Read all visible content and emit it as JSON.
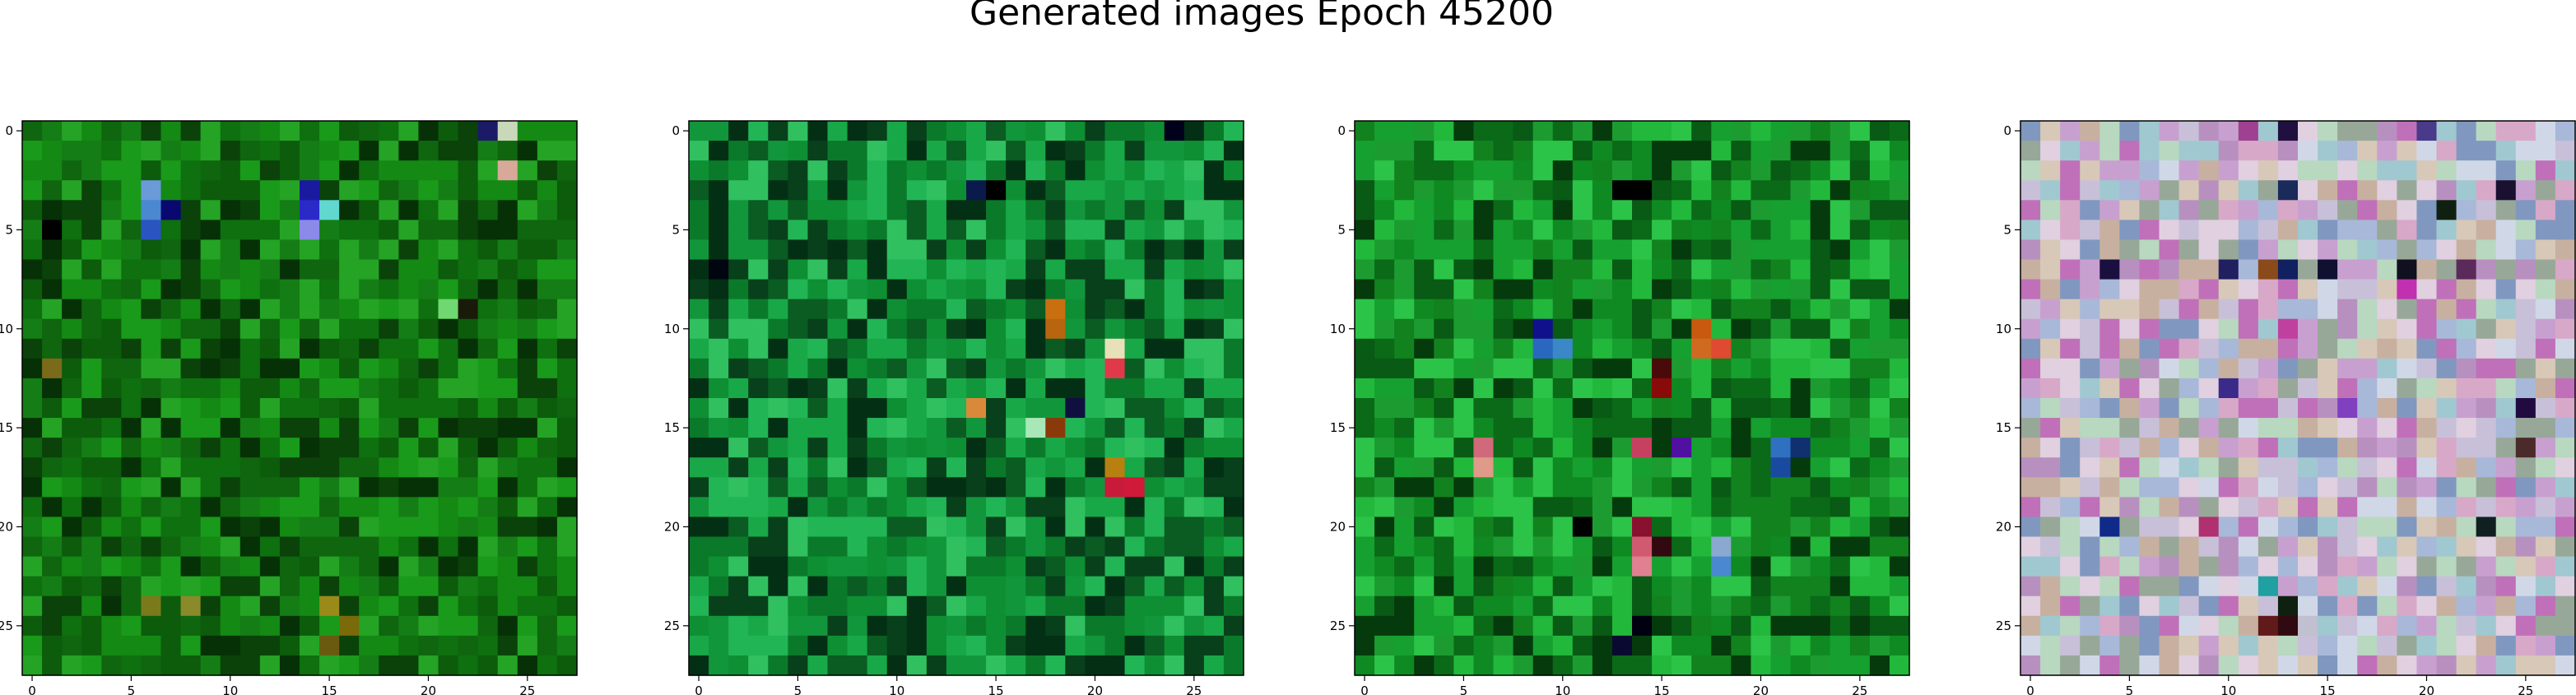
{
  "figure": {
    "title": "Generated images Epoch 45200",
    "background": "#ffffff"
  },
  "chart_data": [
    {
      "type": "heatmap",
      "panel": "image-1",
      "description_palette": "green-dominant",
      "grid_size": [
        28,
        28
      ],
      "xlim": [
        -0.5,
        27.5
      ],
      "ylim": [
        27.5,
        -0.5
      ],
      "y_axis_inverted": true,
      "xticks": [
        0,
        5,
        10,
        15,
        20,
        25
      ],
      "yticks": [
        0,
        5,
        10,
        15,
        20,
        25
      ],
      "palette": [
        "#0c5c0c",
        "#0e700e",
        "#148914",
        "#1a9a1a",
        "#0a420a",
        "#157d15",
        "#25a325",
        "#0f660f",
        "#063106"
      ],
      "highlights": [
        {
          "row": 0,
          "col": 24,
          "color": "#c8d8b8"
        },
        {
          "row": 0,
          "col": 23,
          "color": "#1a1a66"
        },
        {
          "row": 2,
          "col": 24,
          "color": "#d8a898"
        },
        {
          "row": 3,
          "col": 6,
          "color": "#6a9ad8"
        },
        {
          "row": 4,
          "col": 6,
          "color": "#4a88d0"
        },
        {
          "row": 3,
          "col": 14,
          "color": "#1a1aa0"
        },
        {
          "row": 4,
          "col": 7,
          "color": "#080870"
        },
        {
          "row": 4,
          "col": 14,
          "color": "#2a2ac8"
        },
        {
          "row": 4,
          "col": 15,
          "color": "#60d8d0"
        },
        {
          "row": 5,
          "col": 14,
          "color": "#8a8ae8"
        },
        {
          "row": 5,
          "col": 6,
          "color": "#2a55c0"
        },
        {
          "row": 5,
          "col": 1,
          "color": "#000000"
        },
        {
          "row": 9,
          "col": 21,
          "color": "#70d870"
        },
        {
          "row": 9,
          "col": 22,
          "color": "#1a1a0a"
        },
        {
          "row": 12,
          "col": 1,
          "color": "#7a6a1a"
        },
        {
          "row": 24,
          "col": 6,
          "color": "#7a7a1a"
        },
        {
          "row": 24,
          "col": 8,
          "color": "#8a8a2a"
        },
        {
          "row": 24,
          "col": 15,
          "color": "#9a8a1a"
        },
        {
          "row": 25,
          "col": 16,
          "color": "#7a6a0a"
        },
        {
          "row": 26,
          "col": 15,
          "color": "#6a5a10"
        }
      ]
    },
    {
      "type": "heatmap",
      "panel": "image-2",
      "description_palette": "green-dominant",
      "grid_size": [
        28,
        28
      ],
      "xlim": [
        -0.5,
        27.5
      ],
      "ylim": [
        27.5,
        -0.5
      ],
      "y_axis_inverted": true,
      "xticks": [
        0,
        5,
        10,
        15,
        20,
        25
      ],
      "yticks": [
        0,
        5,
        10,
        15,
        20,
        25
      ],
      "palette": [
        "#0a7a2a",
        "#0e8f33",
        "#19a848",
        "#0a5c22",
        "#22b555",
        "#07401a",
        "#30c060",
        "#12963c",
        "#033014"
      ],
      "highlights": [
        {
          "row": 9,
          "col": 18,
          "color": "#c87010"
        },
        {
          "row": 10,
          "col": 18,
          "color": "#b86510"
        },
        {
          "row": 11,
          "col": 21,
          "color": "#e8e0b8"
        },
        {
          "row": 12,
          "col": 21,
          "color": "#e03a4a"
        },
        {
          "row": 14,
          "col": 14,
          "color": "#d88a3a"
        },
        {
          "row": 14,
          "col": 19,
          "color": "#101040"
        },
        {
          "row": 15,
          "col": 17,
          "color": "#a8e8b8"
        },
        {
          "row": 15,
          "col": 18,
          "color": "#8a3a0a"
        },
        {
          "row": 17,
          "col": 21,
          "color": "#b88010"
        },
        {
          "row": 18,
          "col": 21,
          "color": "#c81a3a"
        },
        {
          "row": 18,
          "col": 22,
          "color": "#d01a3a"
        },
        {
          "row": 0,
          "col": 24,
          "color": "#00001a"
        },
        {
          "row": 3,
          "col": 15,
          "color": "#000000"
        },
        {
          "row": 7,
          "col": 1,
          "color": "#000510"
        },
        {
          "row": 3,
          "col": 14,
          "color": "#0a1a4a"
        }
      ]
    },
    {
      "type": "heatmap",
      "panel": "image-3",
      "description_palette": "green-dominant",
      "grid_size": [
        28,
        28
      ],
      "xlim": [
        -0.5,
        27.5
      ],
      "ylim": [
        27.5,
        -0.5
      ],
      "y_axis_inverted": true,
      "xticks": [
        0,
        5,
        10,
        15,
        20,
        25
      ],
      "yticks": [
        0,
        5,
        10,
        15,
        20,
        25
      ],
      "palette": [
        "#0f8a22",
        "#16a030",
        "#0a6a18",
        "#22b83c",
        "#085a14",
        "#1c9c30",
        "#2cc448",
        "#053a0c",
        "#12821e"
      ],
      "highlights": [
        {
          "row": 3,
          "col": 13,
          "color": "#000000"
        },
        {
          "row": 3,
          "col": 14,
          "color": "#000000"
        },
        {
          "row": 10,
          "col": 9,
          "color": "#10108a"
        },
        {
          "row": 11,
          "col": 9,
          "color": "#2a68c0"
        },
        {
          "row": 11,
          "col": 10,
          "color": "#3a88c8"
        },
        {
          "row": 10,
          "col": 17,
          "color": "#c85a10"
        },
        {
          "row": 11,
          "col": 17,
          "color": "#d06a20"
        },
        {
          "row": 11,
          "col": 18,
          "color": "#e04a30"
        },
        {
          "row": 12,
          "col": 15,
          "color": "#4a0a0a"
        },
        {
          "row": 13,
          "col": 15,
          "color": "#8a0a0a"
        },
        {
          "row": 16,
          "col": 6,
          "color": "#d06a7a"
        },
        {
          "row": 17,
          "col": 6,
          "color": "#e09a8a"
        },
        {
          "row": 16,
          "col": 14,
          "color": "#c84060"
        },
        {
          "row": 16,
          "col": 16,
          "color": "#5010a0"
        },
        {
          "row": 16,
          "col": 21,
          "color": "#3070c0"
        },
        {
          "row": 17,
          "col": 21,
          "color": "#1a4aa0"
        },
        {
          "row": 16,
          "col": 22,
          "color": "#103070"
        },
        {
          "row": 20,
          "col": 14,
          "color": "#8a1030"
        },
        {
          "row": 21,
          "col": 14,
          "color": "#d05a70"
        },
        {
          "row": 22,
          "col": 14,
          "color": "#e08090"
        },
        {
          "row": 21,
          "col": 18,
          "color": "#8aa8d0"
        },
        {
          "row": 22,
          "col": 18,
          "color": "#4a88d0"
        },
        {
          "row": 21,
          "col": 15,
          "color": "#300a10"
        },
        {
          "row": 25,
          "col": 14,
          "color": "#000010"
        },
        {
          "row": 26,
          "col": 13,
          "color": "#0a0a30"
        },
        {
          "row": 20,
          "col": 11,
          "color": "#000000"
        }
      ]
    },
    {
      "type": "heatmap",
      "panel": "image-4",
      "description_palette": "pastel multicolor",
      "grid_size": [
        28,
        28
      ],
      "xlim": [
        -0.5,
        27.5
      ],
      "ylim": [
        27.5,
        -0.5
      ],
      "y_axis_inverted": true,
      "xticks": [
        0,
        5,
        10,
        15,
        20,
        25
      ],
      "yticks": [
        0,
        5,
        10,
        15,
        20,
        25
      ],
      "palette": [
        "#c8c0d8",
        "#b8d8c0",
        "#d8a8c8",
        "#a8b8d8",
        "#c8a0d0",
        "#d8c8b8",
        "#98a898",
        "#b890c0",
        "#e0d0e0",
        "#a0c8d0",
        "#c8b0a0",
        "#d0d8e8",
        "#c070b8",
        "#8098c0"
      ],
      "highlights": [
        {
          "row": 0,
          "col": 13,
          "color": "#201040"
        },
        {
          "row": 0,
          "col": 20,
          "color": "#4a3a8a"
        },
        {
          "row": 0,
          "col": 11,
          "color": "#a04090"
        },
        {
          "row": 3,
          "col": 13,
          "color": "#1a2a5a"
        },
        {
          "row": 3,
          "col": 24,
          "color": "#1a1030"
        },
        {
          "row": 4,
          "col": 21,
          "color": "#102010"
        },
        {
          "row": 7,
          "col": 4,
          "color": "#1a1040"
        },
        {
          "row": 7,
          "col": 10,
          "color": "#202060"
        },
        {
          "row": 7,
          "col": 12,
          "color": "#8a4a1a"
        },
        {
          "row": 7,
          "col": 13,
          "color": "#102060"
        },
        {
          "row": 7,
          "col": 15,
          "color": "#101030"
        },
        {
          "row": 7,
          "col": 19,
          "color": "#101020"
        },
        {
          "row": 7,
          "col": 22,
          "color": "#5a2a5a"
        },
        {
          "row": 8,
          "col": 19,
          "color": "#c030b0"
        },
        {
          "row": 10,
          "col": 13,
          "color": "#c040a0"
        },
        {
          "row": 13,
          "col": 10,
          "color": "#3a2a8a"
        },
        {
          "row": 14,
          "col": 16,
          "color": "#8040c0"
        },
        {
          "row": 14,
          "col": 25,
          "color": "#200a40"
        },
        {
          "row": 16,
          "col": 25,
          "color": "#4a2a2a"
        },
        {
          "row": 20,
          "col": 4,
          "color": "#102a8a"
        },
        {
          "row": 20,
          "col": 9,
          "color": "#b03070"
        },
        {
          "row": 20,
          "col": 23,
          "color": "#102020"
        },
        {
          "row": 23,
          "col": 12,
          "color": "#20a0a0"
        },
        {
          "row": 24,
          "col": 13,
          "color": "#102010"
        },
        {
          "row": 25,
          "col": 13,
          "color": "#300a10"
        },
        {
          "row": 25,
          "col": 12,
          "color": "#601a1a"
        },
        {
          "row": 25,
          "col": 14,
          "color": "#c0c0d0"
        }
      ]
    }
  ]
}
